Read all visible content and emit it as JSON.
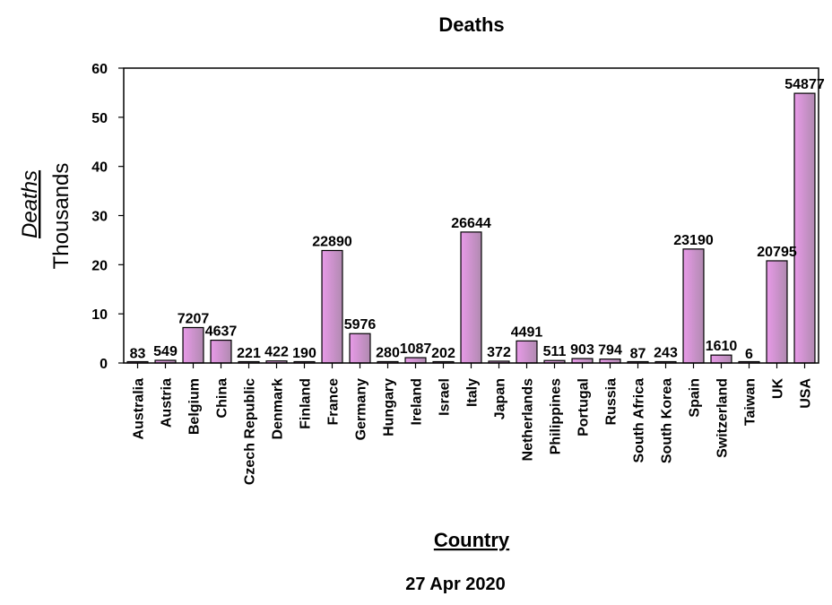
{
  "chart_data": {
    "type": "bar",
    "title": "Deaths",
    "ylabel": "Deaths",
    "ylabel_unit": "Thousands",
    "xlabel": "Country",
    "date": "27 Apr 2020",
    "ylim": [
      0,
      60
    ],
    "yticks": [
      0,
      10,
      20,
      30,
      40,
      50,
      60
    ],
    "value_scale": 1000,
    "grid": false,
    "legend": "none",
    "bar_gradient": [
      "#e89ae8",
      "#b08ab0"
    ],
    "categories": [
      "Australia",
      "Austria",
      "Belgium",
      "China",
      "Czech Republic",
      "Denmark",
      "Finland",
      "France",
      "Germany",
      "Hungary",
      "Ireland",
      "Israel",
      "Italy",
      "Japan",
      "Netherlands",
      "Philippines",
      "Portugal",
      "Russia",
      "South Africa",
      "South Korea",
      "Spain",
      "Switzerland",
      "Taiwan",
      "UK",
      "USA"
    ],
    "values": [
      83,
      549,
      7207,
      4637,
      221,
      422,
      190,
      22890,
      5976,
      280,
      1087,
      202,
      26644,
      372,
      4491,
      511,
      903,
      794,
      87,
      243,
      23190,
      1610,
      6,
      20795,
      54877
    ]
  }
}
